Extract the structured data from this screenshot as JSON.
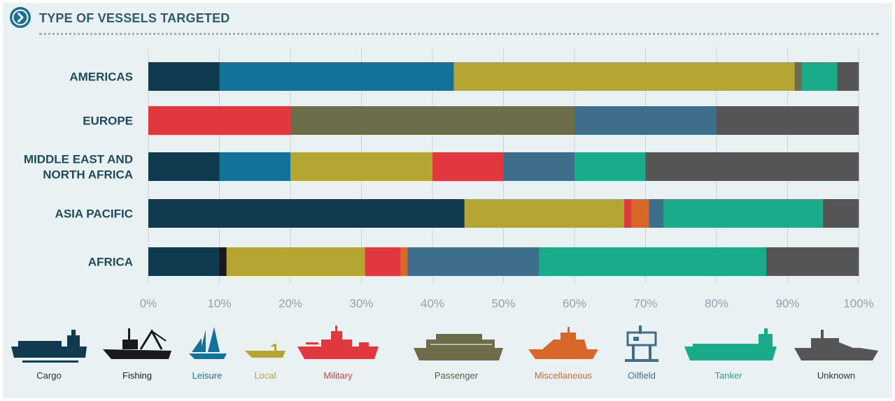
{
  "header": {
    "title": "TYPE OF VESSELS TARGETED",
    "icon": "chevron-right-icon"
  },
  "chart_data": {
    "type": "bar",
    "orientation": "horizontal",
    "stacked": true,
    "title": "TYPE OF VESSELS TARGETED",
    "categories": [
      "AMERICAS",
      "EUROPE",
      "MIDDLE EAST AND NORTH AFRICA",
      "ASIA PACIFIC",
      "AFRICA"
    ],
    "category_lines": [
      [
        "AMERICAS"
      ],
      [
        "EUROPE"
      ],
      [
        "MIDDLE EAST AND",
        "NORTH AFRICA"
      ],
      [
        "ASIA PACIFIC"
      ],
      [
        "AFRICA"
      ]
    ],
    "xlim": [
      0,
      100
    ],
    "xticks": [
      "0%",
      "10%",
      "20%",
      "30%",
      "40%",
      "50%",
      "60%",
      "70%",
      "80%",
      "90%",
      "100%"
    ],
    "series": [
      {
        "name": "Cargo",
        "color": "#0f3a50",
        "values": [
          10,
          0,
          10,
          44.5,
          10
        ]
      },
      {
        "name": "Fishing",
        "color": "#1a1a1a",
        "values": [
          0,
          0,
          0,
          0,
          1
        ]
      },
      {
        "name": "Leisure",
        "color": "#12729a",
        "values": [
          33,
          0,
          10,
          0,
          0
        ]
      },
      {
        "name": "Local",
        "color": "#b5a532",
        "values": [
          48,
          0,
          20,
          22.5,
          19.5
        ]
      },
      {
        "name": "Military",
        "color": "#e0383e",
        "values": [
          0,
          20,
          10,
          1,
          5
        ]
      },
      {
        "name": "Passenger",
        "color": "#6e6d4b",
        "values": [
          1,
          40,
          0,
          0,
          0
        ]
      },
      {
        "name": "Miscellaneous",
        "color": "#d8682a",
        "values": [
          0,
          0,
          0,
          2.5,
          1
        ]
      },
      {
        "name": "Oilfield",
        "color": "#3f6e8c",
        "values": [
          0,
          20,
          10,
          2,
          18.5
        ]
      },
      {
        "name": "Tanker",
        "color": "#1aab8a",
        "values": [
          5,
          0,
          10,
          22.5,
          32
        ]
      },
      {
        "name": "Unknown",
        "color": "#555555",
        "values": [
          3,
          20,
          30,
          5,
          13
        ]
      }
    ],
    "legend_position": "bottom"
  },
  "legend": {
    "items": [
      {
        "label": "Cargo",
        "icon": "cargo-ship-icon",
        "color": "#0f3a50",
        "text_color": "#1f2f3a"
      },
      {
        "label": "Fishing",
        "icon": "fishing-boat-icon",
        "color": "#1a1a1a",
        "text_color": "#1a1a1a"
      },
      {
        "label": "Leisure",
        "icon": "sailboat-icon",
        "color": "#12729a",
        "text_color": "#12729a"
      },
      {
        "label": "Local",
        "icon": "local-boat-icon",
        "color": "#b5a532",
        "text_color": "#b5a532"
      },
      {
        "label": "Military",
        "icon": "warship-icon",
        "color": "#e0383e",
        "text_color": "#e0383e"
      },
      {
        "label": "Passenger",
        "icon": "passenger-ship-icon",
        "color": "#6e6d4b",
        "text_color": "#5c5c46"
      },
      {
        "label": "Miscellaneous",
        "icon": "yacht-icon",
        "color": "#d8682a",
        "text_color": "#d8682a"
      },
      {
        "label": "Oilfield",
        "icon": "oil-rig-icon",
        "color": "#3f6e8c",
        "text_color": "#3f6e8c"
      },
      {
        "label": "Tanker",
        "icon": "tanker-ship-icon",
        "color": "#1aab8a",
        "text_color": "#1aab8a"
      },
      {
        "label": "Unknown",
        "icon": "unknown-ship-icon",
        "color": "#555555",
        "text_color": "#333333"
      }
    ]
  }
}
